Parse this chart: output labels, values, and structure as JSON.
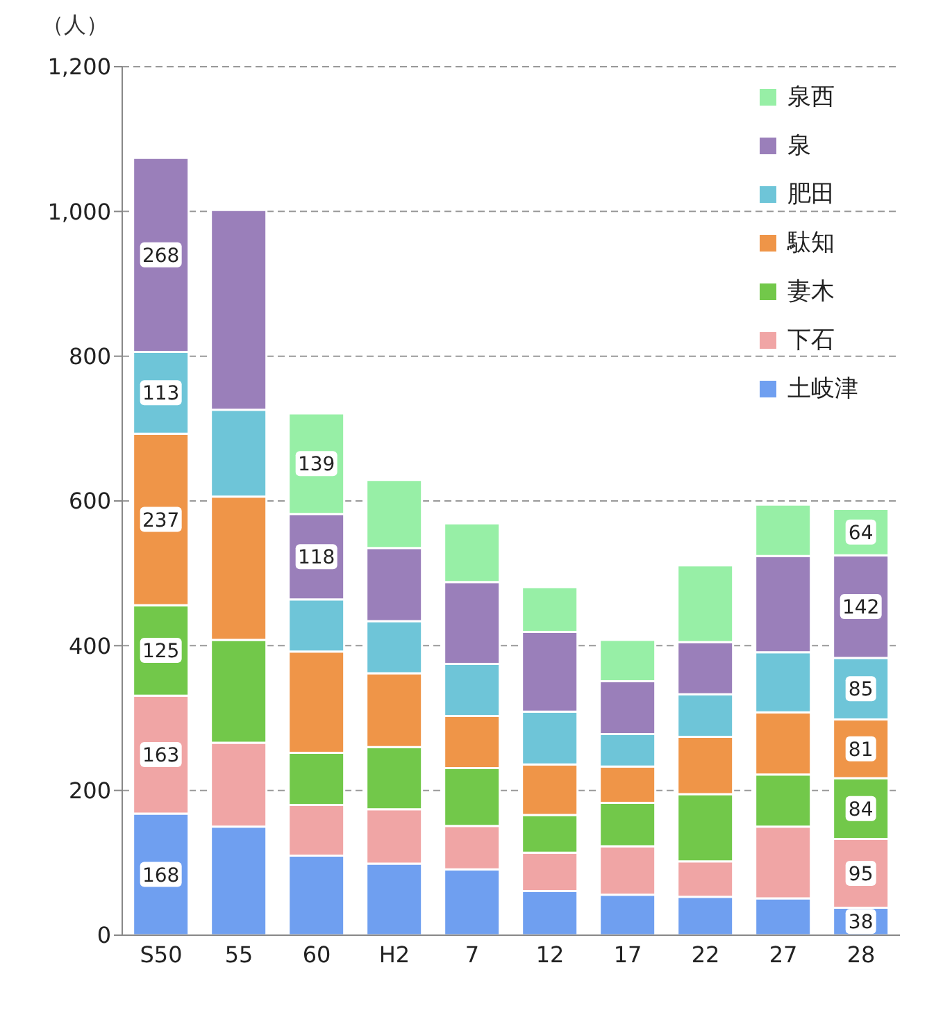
{
  "chart_data": {
    "type": "bar",
    "stacked": true,
    "ylabel": "（人）",
    "categories": [
      "S50",
      "55",
      "60",
      "H2",
      "7",
      "12",
      "17",
      "22",
      "27",
      "28"
    ],
    "series": [
      {
        "name": "土岐津",
        "color": "#6f9ff0",
        "values": [
          168,
          150,
          110,
          99,
          91,
          61,
          56,
          53,
          51,
          38
        ],
        "value_labels": [
          "168",
          null,
          null,
          null,
          null,
          null,
          null,
          null,
          null,
          "38"
        ]
      },
      {
        "name": "下石",
        "color": "#f0a5a5",
        "values": [
          163,
          116,
          70,
          75,
          60,
          53,
          67,
          49,
          99,
          95
        ],
        "value_labels": [
          "163",
          null,
          null,
          null,
          null,
          null,
          null,
          null,
          null,
          "95"
        ]
      },
      {
        "name": "妻木",
        "color": "#72c84a",
        "values": [
          125,
          142,
          72,
          86,
          80,
          52,
          60,
          93,
          72,
          84
        ],
        "value_labels": [
          "125",
          null,
          null,
          null,
          null,
          null,
          null,
          null,
          null,
          "84"
        ]
      },
      {
        "name": "駄知",
        "color": "#ef9548",
        "values": [
          237,
          198,
          140,
          102,
          72,
          70,
          50,
          79,
          86,
          81
        ],
        "value_labels": [
          "237",
          null,
          null,
          null,
          null,
          null,
          null,
          null,
          null,
          "81"
        ]
      },
      {
        "name": "肥田",
        "color": "#6ec5d8",
        "values": [
          113,
          120,
          72,
          72,
          72,
          73,
          45,
          59,
          83,
          85
        ],
        "value_labels": [
          "113",
          null,
          null,
          null,
          null,
          null,
          null,
          null,
          null,
          "85"
        ]
      },
      {
        "name": "泉",
        "color": "#9a7fba",
        "values": [
          268,
          276,
          118,
          101,
          113,
          110,
          73,
          72,
          133,
          142
        ],
        "value_labels": [
          "268",
          null,
          "118",
          null,
          null,
          null,
          null,
          null,
          null,
          "142"
        ]
      },
      {
        "name": "泉西",
        "color": "#97efa6",
        "values": [
          null,
          null,
          139,
          94,
          81,
          62,
          57,
          106,
          71,
          64
        ],
        "value_labels": [
          null,
          null,
          "139",
          null,
          null,
          null,
          null,
          null,
          null,
          "64"
        ]
      }
    ],
    "ylim": [
      0,
      1200
    ],
    "yticks": [
      0,
      200,
      400,
      600,
      800,
      {
        "value": 1000,
        "label": "1,000"
      },
      {
        "value": 1200,
        "label": "1,200"
      }
    ],
    "grid": "y",
    "legend": "top right"
  }
}
